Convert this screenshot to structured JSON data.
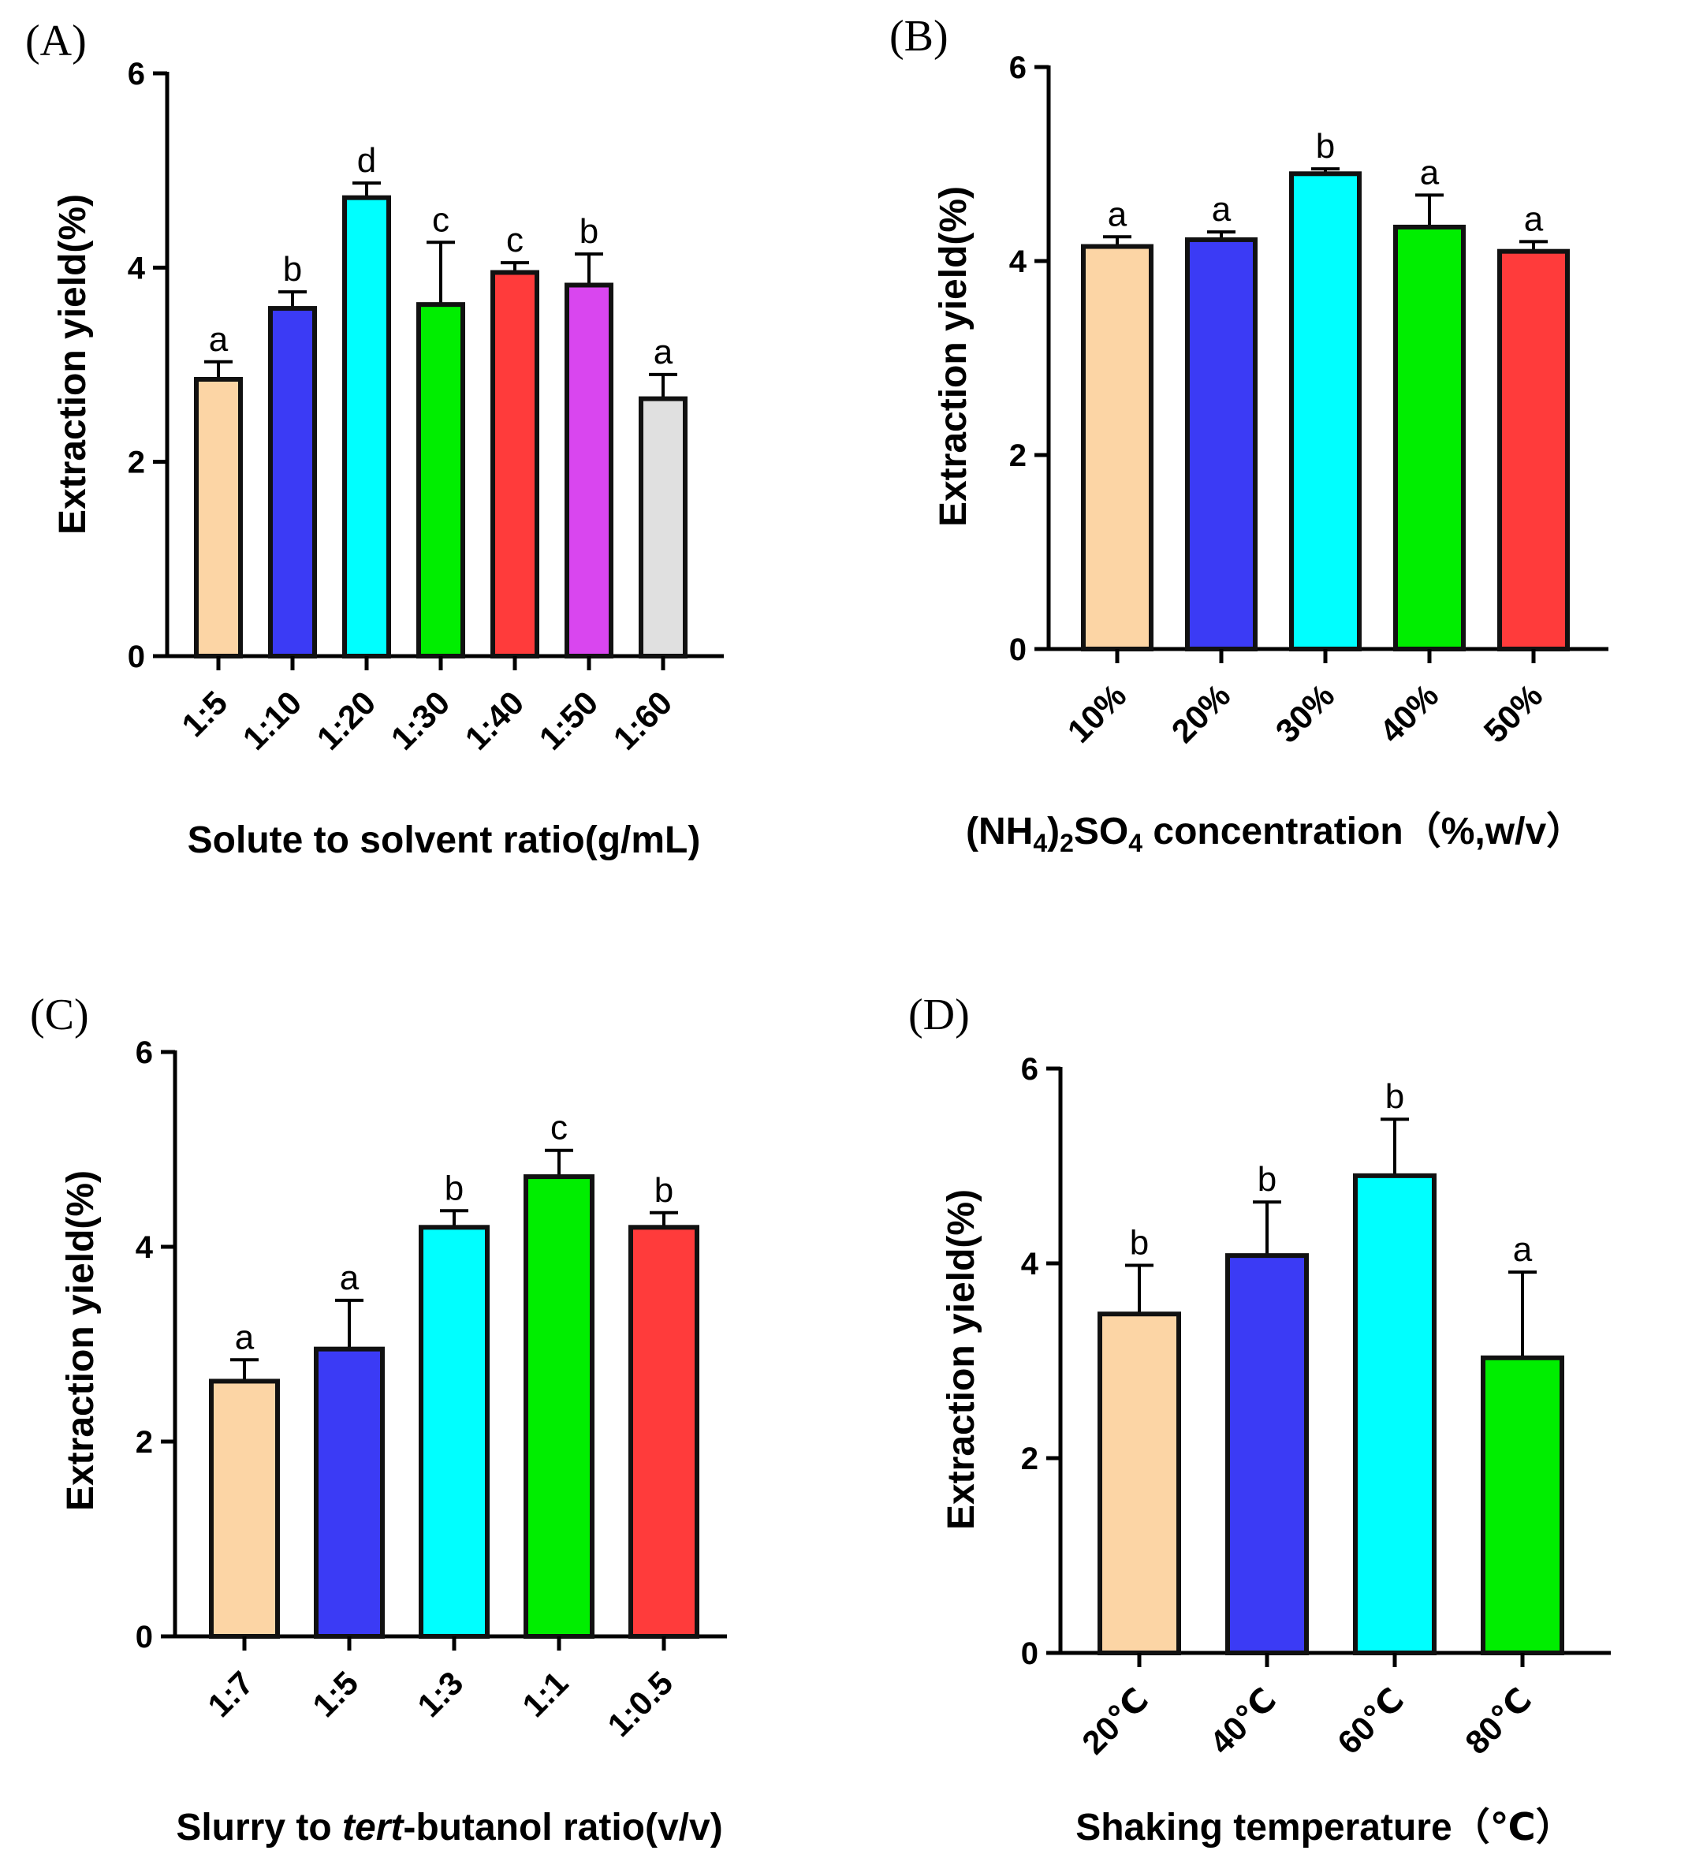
{
  "chart_data": [
    {
      "panel": "(A)",
      "type": "bar",
      "categories": [
        "1:5",
        "1:10",
        "1:20",
        "1:30",
        "1:40",
        "1:50",
        "1:60"
      ],
      "values": [
        2.85,
        3.58,
        4.72,
        3.62,
        3.95,
        3.82,
        2.65
      ],
      "errors": [
        0.18,
        0.17,
        0.15,
        0.64,
        0.1,
        0.32,
        0.25
      ],
      "significance": [
        "a",
        "b",
        "d",
        "c",
        "c",
        "b",
        "a"
      ],
      "colors": [
        "#FCD5A5",
        "#3B3BF5",
        "#00FFFF",
        "#00EE00",
        "#FF3B3B",
        "#D946EF",
        "#E0E0E0"
      ],
      "xlabel": "Solute to solvent ratio(g/mL)",
      "ylabel": "Extraction yield(%)",
      "ylim": [
        0,
        6
      ],
      "yticks": [
        "0",
        "2",
        "4",
        "6"
      ]
    },
    {
      "panel": "(B)",
      "type": "bar",
      "categories": [
        "10%",
        "20%",
        "30%",
        "40%",
        "50%"
      ],
      "values": [
        4.15,
        4.22,
        4.9,
        4.35,
        4.1
      ],
      "errors": [
        0.1,
        0.08,
        0.05,
        0.33,
        0.1
      ],
      "significance": [
        "a",
        "a",
        "b",
        "a",
        "a"
      ],
      "colors": [
        "#FCD5A5",
        "#3B3BF5",
        "#00FFFF",
        "#00EE00",
        "#FF3B3B"
      ],
      "xlabel": {
        "pre": "(NH",
        "sub1": "4",
        "mid": ")",
        "sub2": "2",
        "mid2": "SO",
        "sub3": "4",
        "post": " concentration（%,w/v）"
      },
      "ylabel": "Extraction yield(%)",
      "ylim": [
        0,
        6
      ],
      "yticks": [
        "0",
        "2",
        "4",
        "6"
      ]
    },
    {
      "panel": "(C)",
      "type": "bar",
      "categories": [
        "1:7",
        "1:5",
        "1:3",
        "1:1",
        "1:0.5"
      ],
      "values": [
        2.62,
        2.95,
        4.2,
        4.72,
        4.2
      ],
      "errors": [
        0.22,
        0.5,
        0.17,
        0.27,
        0.15
      ],
      "significance": [
        "a",
        "a",
        "b",
        "c",
        "b"
      ],
      "colors": [
        "#FCD5A5",
        "#3B3BF5",
        "#00FFFF",
        "#00EE00",
        "#FF3B3B"
      ],
      "xlabel": {
        "pre": "Slurry to ",
        "italic": "tert",
        "post": "-butanol ratio(v/v)"
      },
      "ylabel": "Extraction yield(%)",
      "ylim": [
        0,
        6
      ],
      "yticks": [
        "0",
        "2",
        "4",
        "6"
      ]
    },
    {
      "panel": "(D)",
      "type": "bar",
      "categories": [
        "20℃",
        "40℃",
        "60℃",
        "80℃"
      ],
      "values": [
        3.48,
        4.08,
        4.9,
        3.03
      ],
      "errors": [
        0.5,
        0.55,
        0.58,
        0.88
      ],
      "significance": [
        "b",
        "b",
        "b",
        "a"
      ],
      "colors": [
        "#FCD5A5",
        "#3B3BF5",
        "#00FFFF",
        "#00EE00"
      ],
      "xlabel": "Shaking temperature（℃）",
      "ylabel": "Extraction yield(%)",
      "ylim": [
        0,
        6
      ],
      "yticks": [
        "0",
        "2",
        "4",
        "6"
      ]
    }
  ]
}
